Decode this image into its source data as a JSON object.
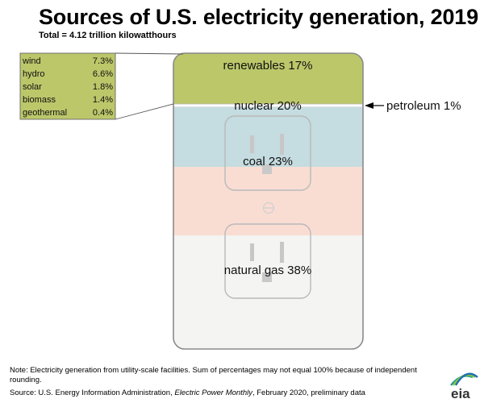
{
  "title": "Sources of U.S. electricity generation, 2019",
  "subtitle": "Total = 4.12 trillion kilowatthours",
  "chart_data": {
    "type": "stacked-bar",
    "segments": [
      {
        "name": "renewables",
        "label": "renewables 17%",
        "value": 17,
        "color": "#bcc76a"
      },
      {
        "name": "petroleum",
        "label": "petroleum 1%",
        "value": 1,
        "color": "#ffffff"
      },
      {
        "name": "nuclear",
        "label": "nuclear 20%",
        "value": 20,
        "color": "#c5dce0"
      },
      {
        "name": "coal",
        "label": "coal 23%",
        "value": 23,
        "color": "#f9ddd3"
      },
      {
        "name": "natural gas",
        "label": "natural gas 38%",
        "value": 38,
        "color": "#f4f4f2"
      }
    ],
    "renewables_breakdown": [
      {
        "name": "wind",
        "value": "7.3%"
      },
      {
        "name": "hydro",
        "value": "6.6%"
      },
      {
        "name": "solar",
        "value": "1.8%"
      },
      {
        "name": "biomass",
        "value": "1.4%"
      },
      {
        "name": "geothermal",
        "value": "0.4%"
      }
    ],
    "breakdown_color": "#bcc76a"
  },
  "note": "Note: Electricity generation from utility-scale facilities. Sum of percentages may not equal 100% because of independent rounding.",
  "source": {
    "prefix": "Source: U.S. Energy Information Administration, ",
    "publication": "Electric Power Monthly",
    "suffix": ", February 2020, preliminary data"
  },
  "logo": {
    "text": "eia",
    "icon": "eia-logo-icon"
  }
}
